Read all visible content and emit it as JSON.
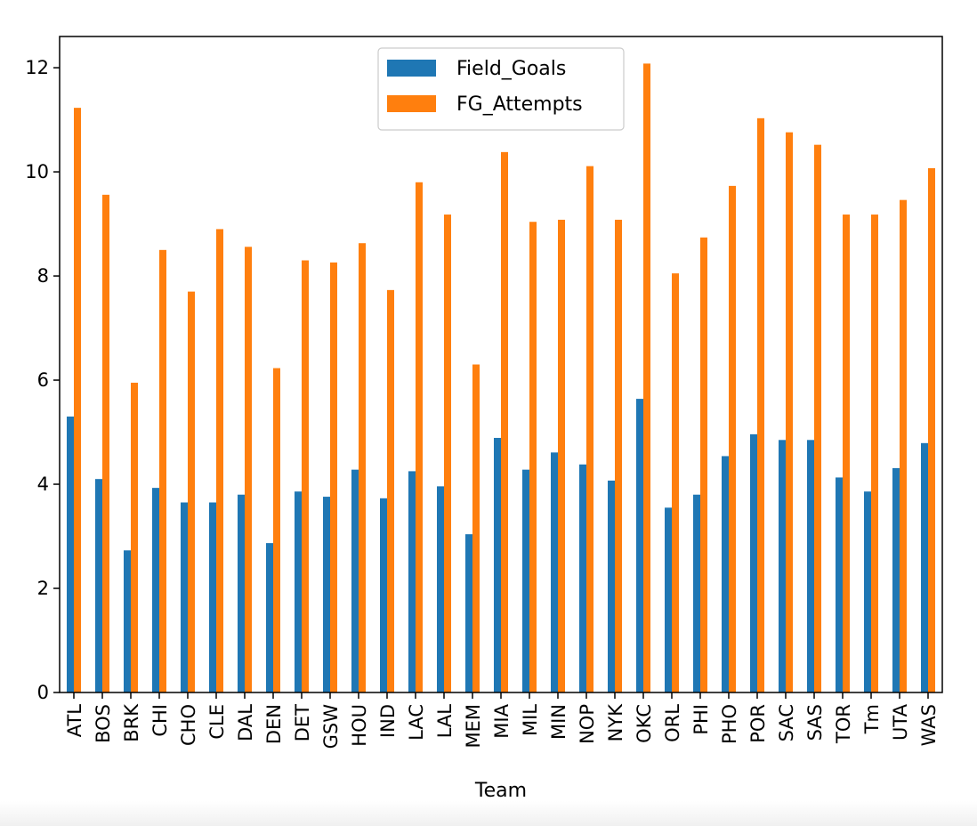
{
  "chart_data": {
    "type": "bar",
    "xlabel": "Team",
    "ylabel": "",
    "title": "",
    "ylim": [
      0,
      12.6
    ],
    "yticks": [
      0,
      2,
      4,
      6,
      8,
      10,
      12
    ],
    "grid": false,
    "legend_position": "upper center",
    "categories": [
      "ATL",
      "BOS",
      "BRK",
      "CHI",
      "CHO",
      "CLE",
      "DAL",
      "DEN",
      "DET",
      "GSW",
      "HOU",
      "IND",
      "LAC",
      "LAL",
      "MEM",
      "MIA",
      "MIL",
      "MIN",
      "NOP",
      "NYK",
      "OKC",
      "ORL",
      "PHI",
      "PHO",
      "POR",
      "SAC",
      "SAS",
      "TOR",
      "Tm",
      "UTA",
      "WAS"
    ],
    "series": [
      {
        "name": "Field_Goals",
        "color": "#1f77b4",
        "values": [
          5.3,
          4.1,
          2.73,
          3.93,
          3.65,
          3.65,
          3.8,
          2.87,
          3.86,
          3.76,
          4.28,
          3.73,
          4.25,
          3.96,
          3.04,
          4.89,
          4.28,
          4.61,
          4.38,
          4.07,
          5.64,
          3.55,
          3.8,
          4.54,
          4.96,
          4.85,
          4.85,
          4.13,
          3.86,
          4.31,
          4.79
        ]
      },
      {
        "name": "FG_Attempts",
        "color": "#ff7f0e",
        "values": [
          11.23,
          9.56,
          5.95,
          8.5,
          7.7,
          8.9,
          8.56,
          6.23,
          8.3,
          8.26,
          8.63,
          7.73,
          9.8,
          9.18,
          6.3,
          10.38,
          9.04,
          9.08,
          10.11,
          9.08,
          12.08,
          8.05,
          8.74,
          9.73,
          11.03,
          10.76,
          10.52,
          9.18,
          9.18,
          9.46,
          10.07
        ]
      }
    ]
  }
}
